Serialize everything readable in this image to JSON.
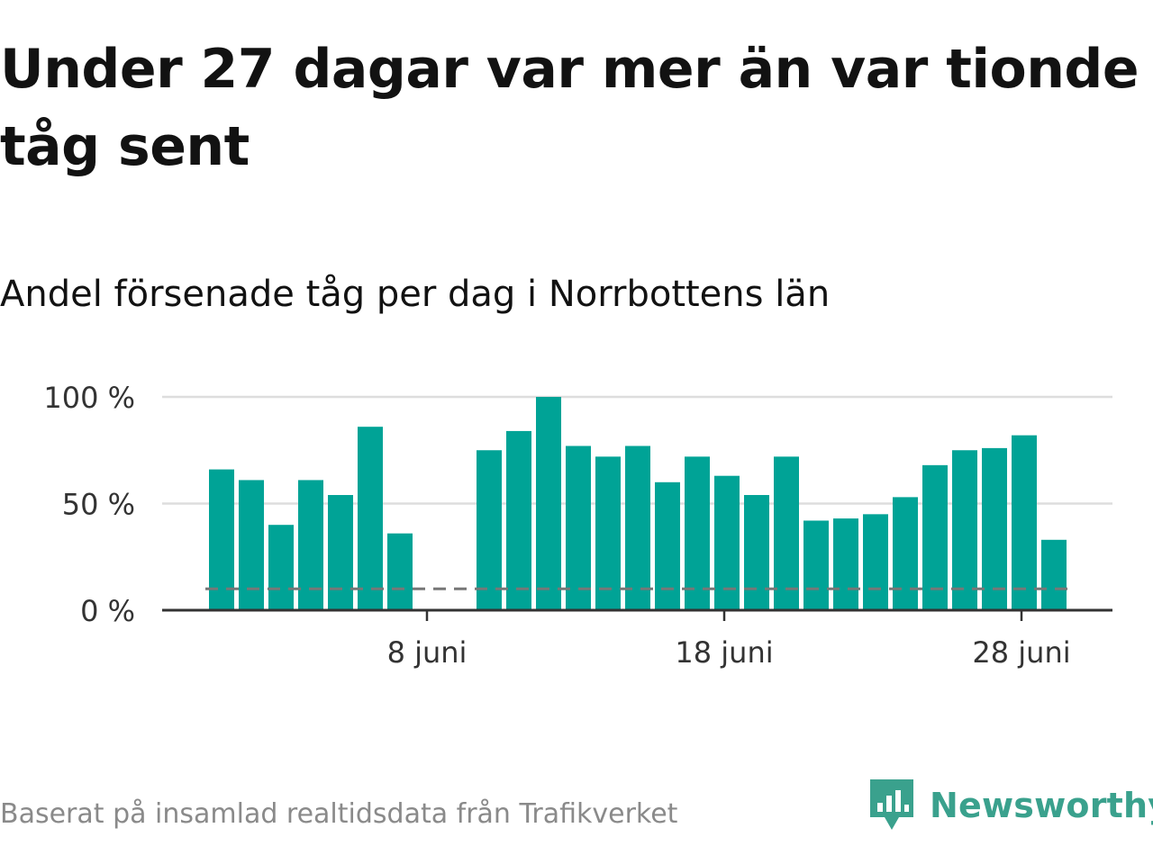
{
  "title": "Under 27 dagar var mer än var tionde tåg sent",
  "subtitle": "Andel försenade tåg per dag i Norrbottens län",
  "source": "Baserat på insamlad realtidsdata från Trafikverket",
  "brand": "Newsworthy",
  "colors": {
    "bar": "#00a396",
    "axis": "#333333",
    "grid": "#dddddd",
    "threshold": "#777777",
    "brand": "#3aa18d"
  },
  "chart_data": {
    "type": "bar",
    "x": [
      1,
      2,
      3,
      4,
      5,
      6,
      7,
      8,
      9,
      10,
      11,
      12,
      13,
      14,
      15,
      16,
      17,
      18,
      19,
      20,
      21,
      22,
      23,
      24,
      25,
      26,
      27,
      28,
      29
    ],
    "values": [
      66,
      61,
      40,
      61,
      54,
      86,
      36,
      null,
      null,
      75,
      84,
      100,
      77,
      72,
      77,
      60,
      72,
      63,
      54,
      72,
      42,
      43,
      45,
      53,
      68,
      75,
      76,
      82,
      33
    ],
    "x_ticks": [
      8,
      18,
      28
    ],
    "x_tick_labels": [
      "8 juni",
      "18 juni",
      "28 juni"
    ],
    "y_ticks": [
      0,
      50,
      100
    ],
    "y_tick_labels": [
      "0 %",
      "50 %",
      "100 %"
    ],
    "ylim": [
      0,
      100
    ],
    "threshold": 10,
    "grid": true
  }
}
